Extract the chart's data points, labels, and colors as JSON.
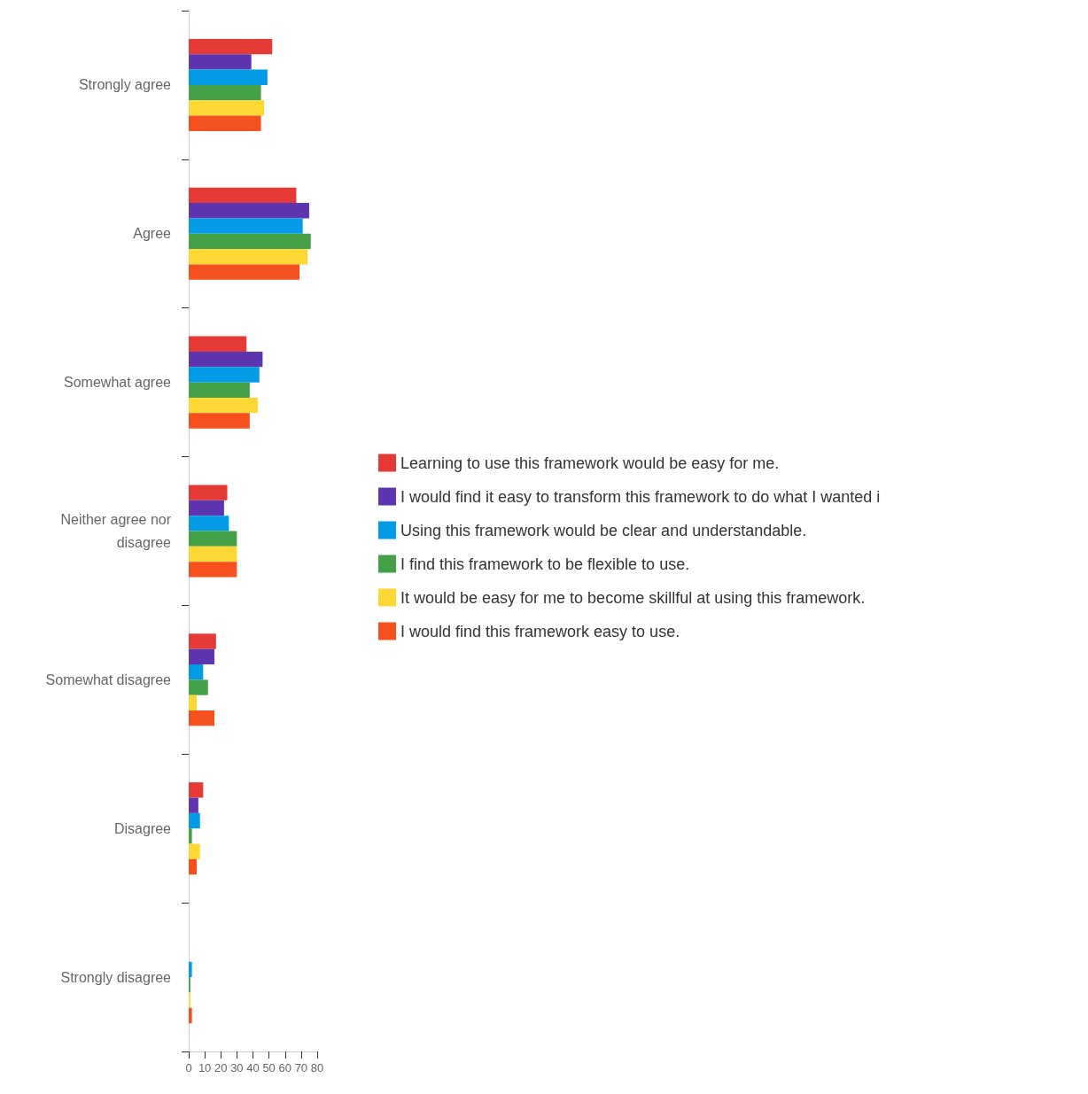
{
  "chart_data": {
    "type": "bar",
    "orientation": "horizontal",
    "categories": [
      "Strongly agree",
      "Agree",
      "Somewhat agree",
      "Neither agree nor disagree",
      "Somewhat disagree",
      "Disagree",
      "Strongly disagree"
    ],
    "series": [
      {
        "name": "Learning to use this framework would be easy for me.",
        "color": "#e53935",
        "values": [
          52,
          67,
          36,
          24,
          17,
          9,
          0
        ]
      },
      {
        "name": "I would find it easy to transform this framework to do what I wanted i",
        "color": "#5e35b1",
        "values": [
          39,
          75,
          46,
          22,
          16,
          6,
          0
        ]
      },
      {
        "name": "Using this framework would be clear and understandable.",
        "color": "#039be5",
        "values": [
          49,
          71,
          44,
          25,
          9,
          7,
          2
        ]
      },
      {
        "name": "I find this framework to be flexible to use.",
        "color": "#43a047",
        "values": [
          45,
          76,
          38,
          30,
          12,
          2,
          1
        ]
      },
      {
        "name": "It would be easy for me to become skillful at using this framework.",
        "color": "#fdd835",
        "values": [
          47,
          74,
          43,
          30,
          5,
          7,
          1
        ]
      },
      {
        "name": "I would find this framework easy to use.",
        "color": "#f4511e",
        "values": [
          45,
          69,
          38,
          30,
          16,
          5,
          2
        ]
      }
    ],
    "xlim": [
      0,
      80
    ],
    "xticks": [
      0,
      10,
      20,
      30,
      40,
      50,
      60,
      70,
      80
    ],
    "grid": false,
    "legend": "right"
  }
}
